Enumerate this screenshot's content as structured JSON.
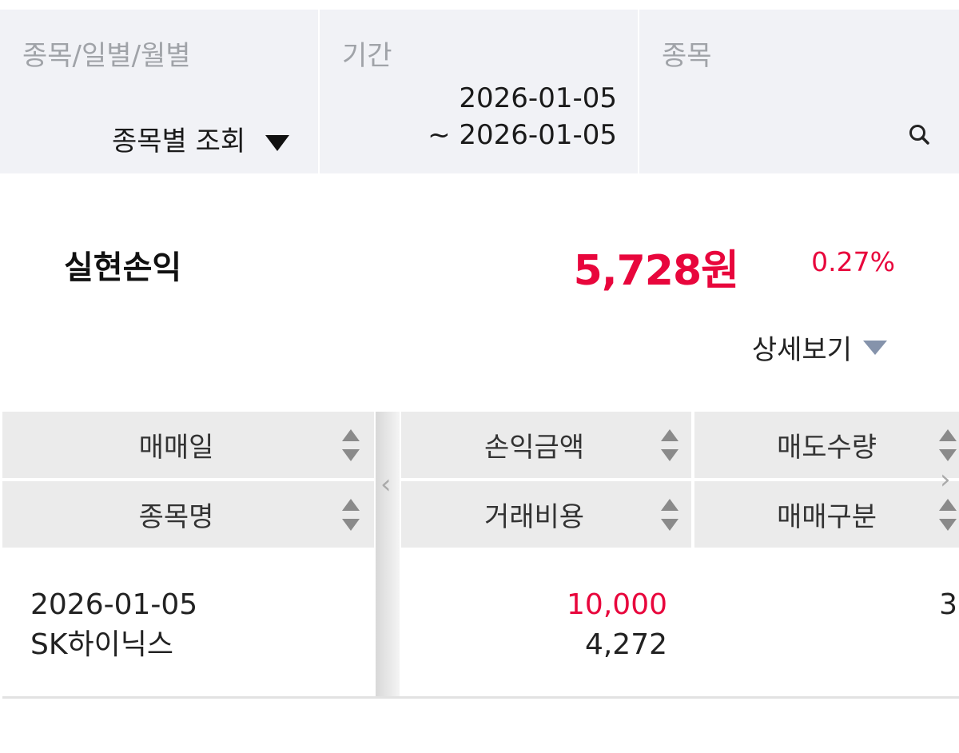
{
  "filters": {
    "view_type": {
      "label": "종목/일별/월별",
      "value": "종목별 조회"
    },
    "period": {
      "label": "기간",
      "start": "2026-01-05",
      "end": "~ 2026-01-05"
    },
    "stock": {
      "label": "종목",
      "value": ""
    }
  },
  "summary": {
    "label": "실현손익",
    "amount": "5,728원",
    "rate": "0.27%",
    "detail_label": "상세보기"
  },
  "colors": {
    "profit": "#e8063c",
    "header_bg": "#ebebeb",
    "filter_bg": "#f1f2f6"
  },
  "table": {
    "headers": [
      [
        "매매일",
        "종목명"
      ],
      [
        "손익금액",
        "거래비용"
      ],
      [
        "매도수량",
        "매매구분"
      ]
    ],
    "rows": [
      {
        "date": "2026-01-05",
        "name": "SK하이닉스",
        "profit": "10,000",
        "cost": "4,272",
        "qty": "3",
        "type": ""
      }
    ]
  }
}
